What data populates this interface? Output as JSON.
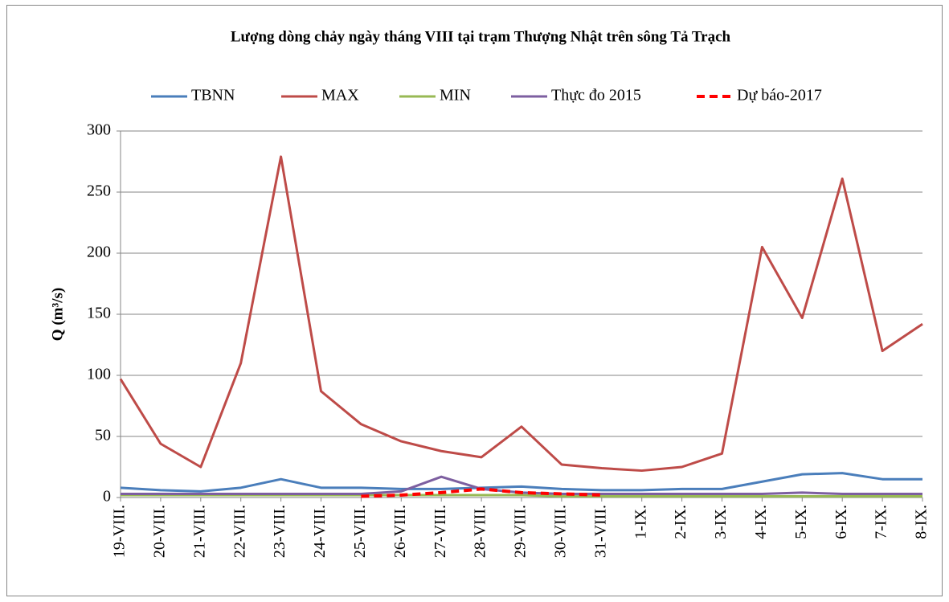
{
  "chart_data": {
    "type": "line",
    "title": "Lượng dòng chảy ngày tháng VIII tại trạm Thượng Nhật trên sông Tả Trạch",
    "ylabel": "Q (m³/s)",
    "categories": [
      "19-VIII.",
      "20-VIII.",
      "21-VIII.",
      "22-VIII.",
      "23-VIII.",
      "24-VIII.",
      "25-VIII.",
      "26-VIII.",
      "27-VIII.",
      "28-VIII.",
      "29-VIII.",
      "30-VIII.",
      "31-VIII.",
      "1-IX.",
      "2-IX.",
      "3-IX.",
      "4-IX.",
      "5-IX.",
      "6-IX.",
      "7-IX.",
      "8-IX."
    ],
    "series": [
      {
        "name": "TBNN",
        "color": "#4a7ebb",
        "values": [
          8,
          6,
          5,
          8,
          15,
          8,
          8,
          7,
          7,
          8,
          9,
          7,
          6,
          6,
          7,
          7,
          13,
          19,
          20,
          15,
          15
        ]
      },
      {
        "name": "MAX",
        "color": "#be4b48",
        "values": [
          97,
          44,
          25,
          110,
          279,
          87,
          60,
          46,
          38,
          33,
          58,
          27,
          24,
          22,
          25,
          36,
          205,
          147,
          261,
          120,
          142
        ]
      },
      {
        "name": "MIN",
        "color": "#98b954",
        "values": [
          2,
          2,
          2,
          2,
          2,
          2,
          2,
          2,
          2,
          2,
          2,
          1,
          1,
          1,
          1,
          1,
          1,
          1,
          1,
          1,
          1
        ]
      },
      {
        "name": "Thực đo 2015",
        "color": "#7d5fa0",
        "values": [
          3,
          3,
          3,
          3,
          3,
          3,
          3,
          5,
          17,
          7,
          4,
          3,
          3,
          3,
          3,
          3,
          3,
          4,
          3,
          3,
          3
        ]
      },
      {
        "name": "Dự báo-2017",
        "color": "#ff0000",
        "dashed": true,
        "values": [
          null,
          null,
          null,
          null,
          null,
          null,
          1,
          2,
          4,
          7,
          4,
          3,
          2,
          null,
          null,
          null,
          null,
          null,
          null,
          null,
          null
        ]
      }
    ],
    "ylim": [
      0,
      300
    ],
    "yticks": [
      0,
      50,
      100,
      150,
      200,
      250,
      300
    ],
    "grid": true
  }
}
